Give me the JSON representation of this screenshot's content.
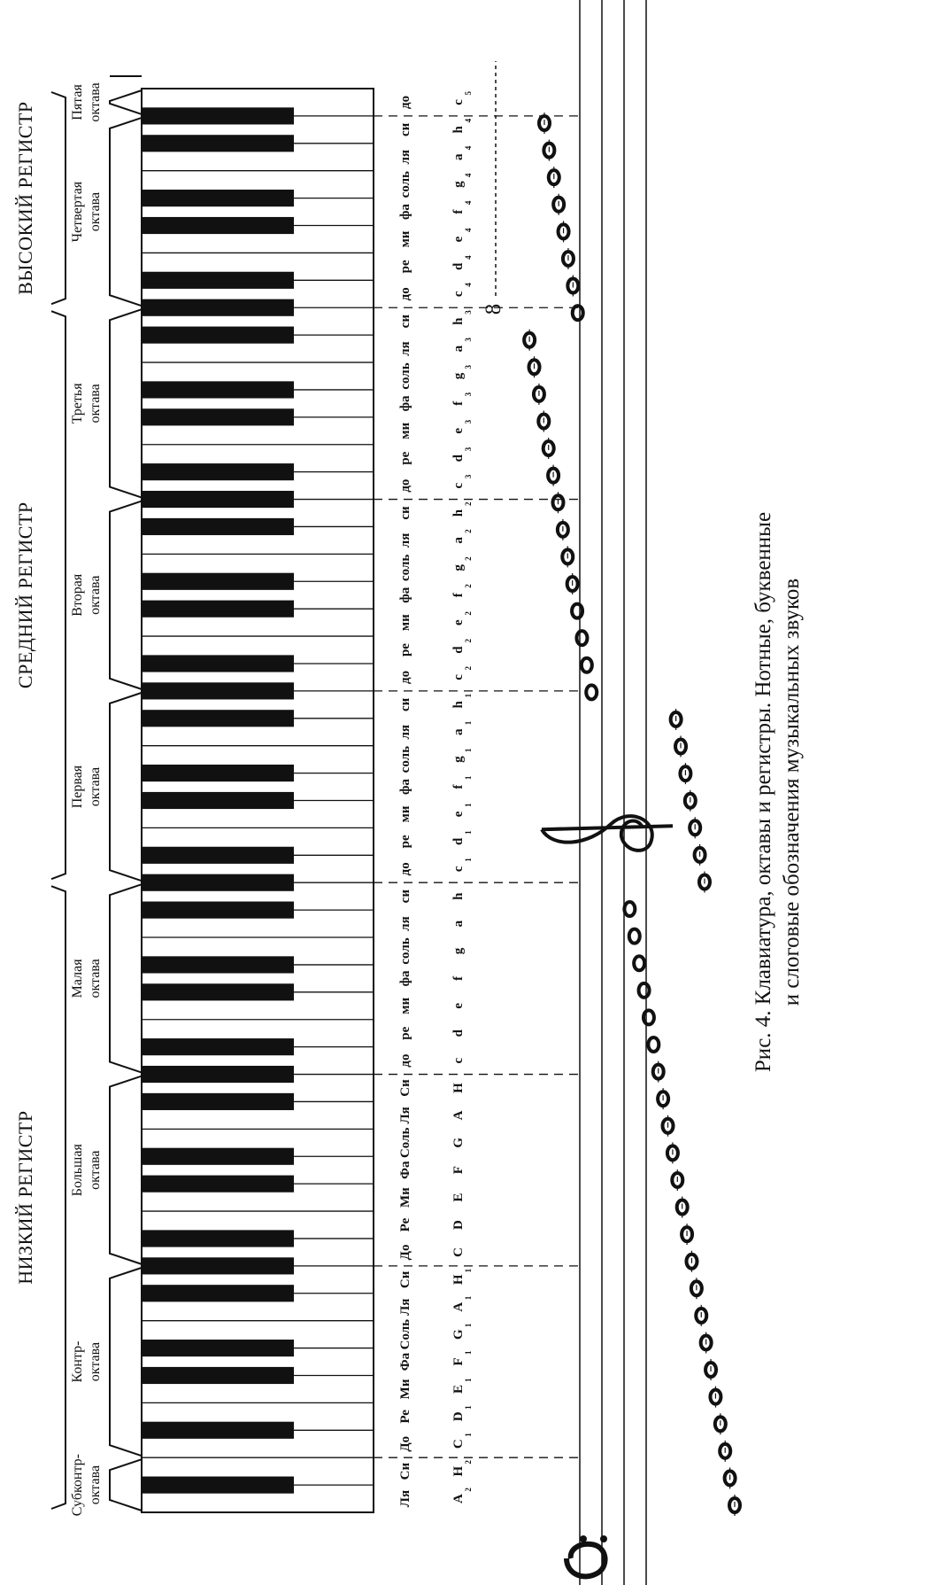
{
  "registers": [
    {
      "label": "НИЗКИЙ РЕГИСТР"
    },
    {
      "label": "СРЕДНИЙ РЕГИСТР"
    },
    {
      "label": "ВЫСОКИЙ РЕГИСТР"
    }
  ],
  "octaves": [
    {
      "line1": "Субконтр-",
      "line2": "октава"
    },
    {
      "line1": "Контр-",
      "line2": "октава"
    },
    {
      "line1": "Большая",
      "line2": "октава"
    },
    {
      "line1": "Малая",
      "line2": "октава"
    },
    {
      "line1": "Первая",
      "line2": "октава"
    },
    {
      "line1": "Вторая",
      "line2": "октава"
    },
    {
      "line1": "Третья",
      "line2": "октава"
    },
    {
      "line1": "Четвертая",
      "line2": "октава"
    },
    {
      "line1": "Пятая",
      "line2": "октава"
    }
  ],
  "syllables_row": {
    "subcontra": [
      "Ля",
      "Си"
    ],
    "big": [
      "До",
      "Ре",
      "Ми",
      "Фа",
      "Соль",
      "Ля",
      "Си"
    ],
    "small": [
      "до",
      "ре",
      "ми",
      "фа",
      "соль",
      "ля",
      "си"
    ],
    "upper": [
      "до",
      "ре",
      "ми",
      "фа",
      "соль",
      "ля",
      "си"
    ],
    "top": "до",
    "octave_marks": [
      "2",
      "1",
      "1",
      "2",
      "3",
      "4",
      "5"
    ]
  },
  "letters_row": {
    "big": [
      "C",
      "D",
      "E",
      "F",
      "G",
      "A",
      "H"
    ],
    "small": [
      "c",
      "d",
      "e",
      "f",
      "g",
      "a",
      "h"
    ],
    "subcontra": [
      "A",
      "H"
    ]
  },
  "staff": {
    "bass_clef_icon": "bass-clef-icon",
    "treble_clef_icon": "treble-clef-icon",
    "octave_sign": "8",
    "note_icon": "whole-note-icon"
  },
  "caption": {
    "line1": "Рис. 4. Клавиатура, октавы и регистры. Нотные, буквенные",
    "line2": "и слоговые обозначения музыкальных звуков"
  }
}
